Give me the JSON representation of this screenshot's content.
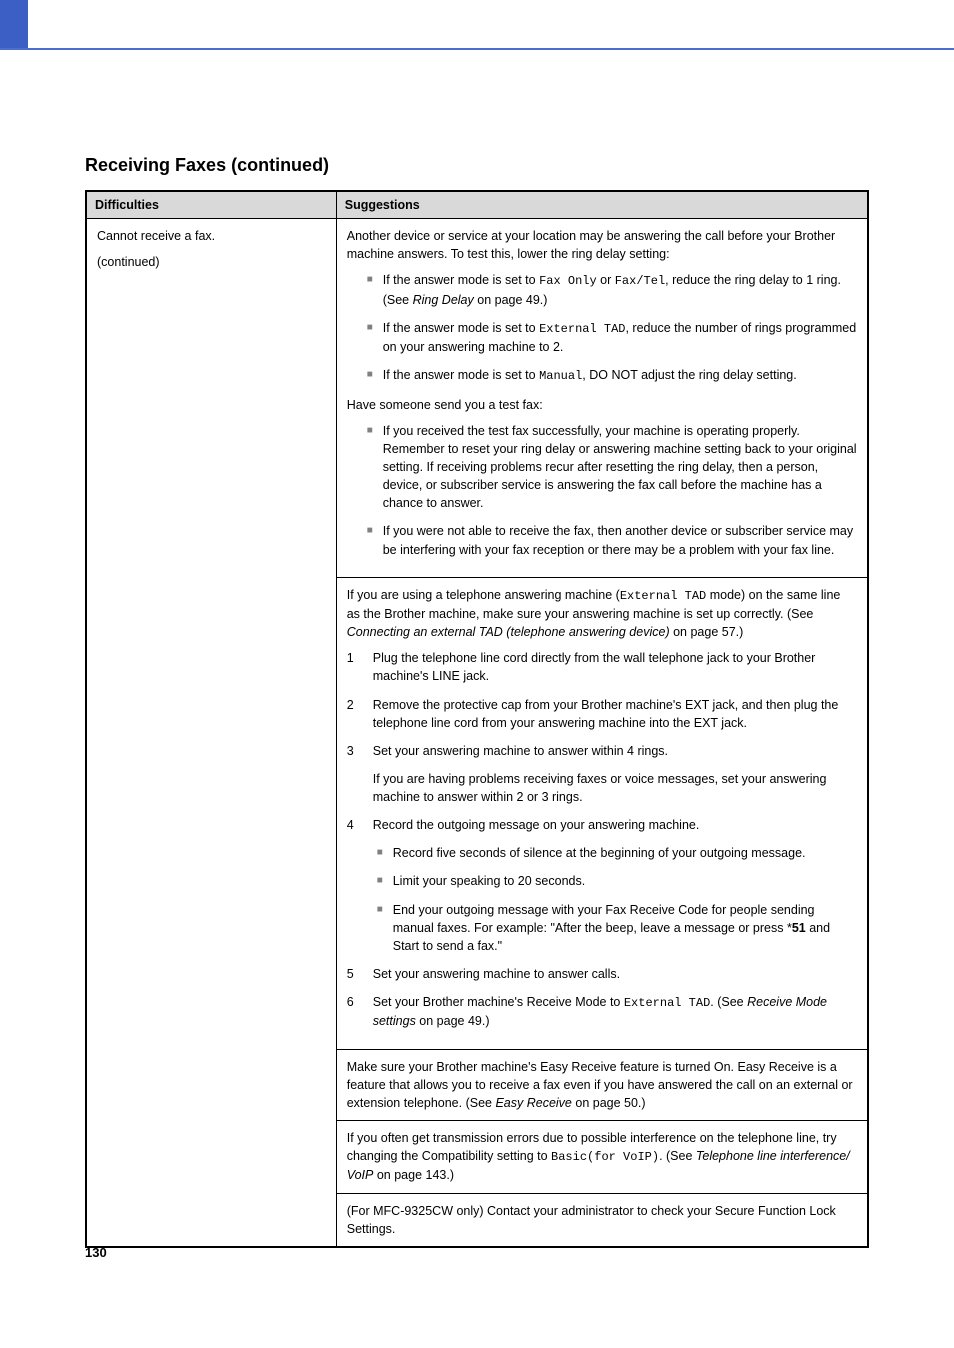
{
  "section_title": "Receiving Faxes (continued)",
  "headers": {
    "difficulties": "Difficulties",
    "suggestions": "Suggestions"
  },
  "difficulties": {
    "line1": "Cannot receive a fax.",
    "line2": "(continued)"
  },
  "block1": {
    "intro": "Another device or service at your location may be answering the call before your Brother machine answers. To test this, lower the ring delay setting:",
    "b1_pre": "If the answer mode is set to ",
    "b1_code1": "Fax Only",
    "b1_mid": " or ",
    "b1_code2": "Fax/Tel",
    "b1_post": ", reduce the ring delay to 1 ring. (See ",
    "b1_italic": "Ring Delay",
    "b1_end": " on page 49.)",
    "b2_pre": "If the answer mode is set to ",
    "b2_code": "External TAD",
    "b2_post": ", reduce the number of rings programmed on your answering machine to 2.",
    "b3_pre": "If the answer mode is set to ",
    "b3_code": "Manual",
    "b3_post": ", DO NOT adjust the ring delay setting.",
    "test": "Have someone send you a test fax:",
    "t1": "If you received the test fax successfully, your machine is operating properly. Remember to reset your ring delay or answering machine setting back to your original setting. If receiving problems recur after resetting the ring delay, then a person, device, or subscriber service is answering the fax call before the machine has a chance to answer.",
    "t2": "If you were not able to receive the fax, then another device or subscriber service may be interfering with your fax reception or there may be a problem with your fax line."
  },
  "block2": {
    "intro_pre": "If you are using a telephone answering machine (",
    "intro_code": "External TAD",
    "intro_mid": " mode) on the same line as the Brother machine, make sure your answering machine is set up correctly. (See ",
    "intro_italic": "Connecting an external TAD (telephone answering device)",
    "intro_end": " on page 57.)",
    "n1": "Plug the telephone line cord directly from the wall telephone jack to your Brother machine's LINE jack.",
    "n2": "Remove the protective cap from your Brother machine's EXT jack, and then plug the telephone line cord from your answering machine into the EXT jack.",
    "n3": "Set your answering machine to answer within 4 rings.",
    "n3_sub": "If you are having problems receiving faxes or voice messages, set your answering machine to answer within 2 or 3 rings.",
    "n4": "Record the outgoing message on your answering machine.",
    "n4_b1": "Record five seconds of silence at the beginning of your outgoing message.",
    "n4_b2": "Limit your speaking to 20 seconds.",
    "n4_b3_pre": "End your outgoing message with your Fax Receive Code for people sending manual faxes. For example: \"After the beep, leave a message or press ",
    "n4_b3_bold": "51",
    "n4_b3_post": " and Start to send a fax.\"",
    "n5": "Set your answering machine to answer calls.",
    "n6_pre": "Set your Brother machine's Receive Mode to ",
    "n6_code": "External TAD",
    "n6_mid": ". (See ",
    "n6_italic": "Receive Mode settings",
    "n6_end": " on page 49.)"
  },
  "block3": {
    "text_pre": "Make sure your Brother machine's Easy Receive feature is turned On. Easy Receive is a feature that allows you to receive a fax even if you have answered the call on an external or extension telephone. (See ",
    "italic": "Easy Receive",
    "text_end": " on page 50.)"
  },
  "block4": {
    "text_pre": "If you often get transmission errors due to possible interference on the telephone line, try changing the Compatibility setting to ",
    "code": "Basic(for VoIP)",
    "text_mid": ". (See ",
    "italic": "Telephone line interference/ VoIP",
    "text_end": " on page 143.)"
  },
  "block5": {
    "text": "(For MFC-9325CW only) Contact your administrator to check your Secure Function Lock Settings."
  },
  "page_number": "130"
}
